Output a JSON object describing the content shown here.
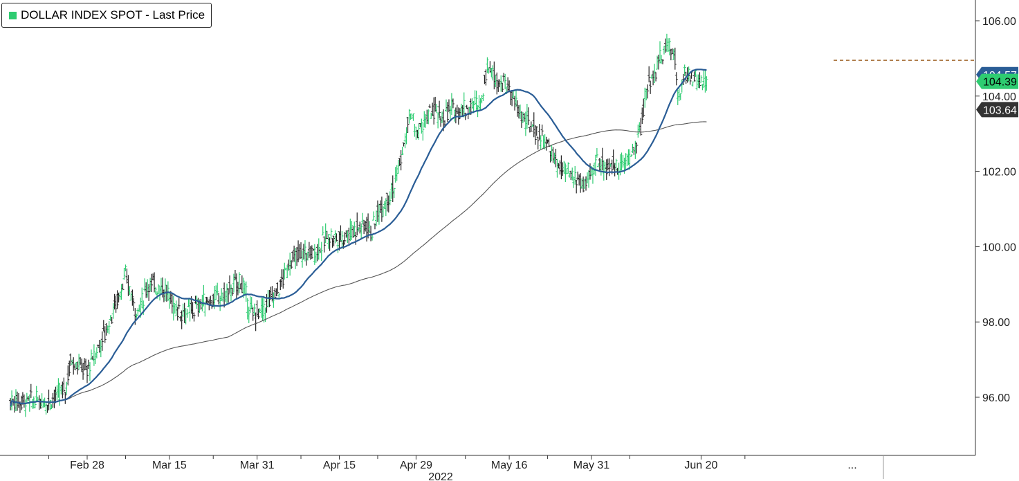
{
  "legend": {
    "label": "DOLLAR INDEX SPOT - Last Price"
  },
  "chart_data": {
    "type": "candlestick",
    "title": "",
    "legend_position": "top-left",
    "grid": false,
    "y_axis": {
      "position": "right",
      "ticks": [
        "106.00",
        "104.00",
        "102.00",
        "100.00",
        "98.00",
        "96.00"
      ],
      "ylim": [
        94.5,
        106.6
      ]
    },
    "x_axis": {
      "ticks": [
        "Feb 28",
        "Mar 15",
        "Mar 31",
        "Apr 15",
        "Apr 29",
        "May 16",
        "May 31",
        "...",
        "Jun 20"
      ],
      "year_label": "2022"
    },
    "colors": {
      "up": "#2ecc71",
      "down": "#222222",
      "ma_short": "#2a5d96",
      "ma_long": "#555555",
      "ref_line": "#a0662a",
      "last_price_box": "#2ecc71",
      "ma_label_box": "#333333",
      "ma_short_box": "#2a5d96"
    },
    "series_close_anchors": [
      [
        "Feb 21",
        95.9
      ],
      [
        "Feb 24",
        96.2
      ],
      [
        "Feb 25",
        97.0
      ],
      [
        "Feb 28",
        96.7
      ],
      [
        "Mar 2",
        97.3
      ],
      [
        "Mar 4",
        98.0
      ],
      [
        "Mar 7",
        99.2
      ],
      [
        "Mar 9",
        98.3
      ],
      [
        "Mar 10",
        98.5
      ],
      [
        "Mar 11",
        99.0
      ],
      [
        "Mar 14",
        98.9
      ],
      [
        "Mar 16",
        98.4
      ],
      [
        "Mar 18",
        98.2
      ],
      [
        "Mar 21",
        98.5
      ],
      [
        "Mar 23",
        98.6
      ],
      [
        "Mar 25",
        98.7
      ],
      [
        "Mar 28",
        99.1
      ],
      [
        "Mar 30",
        98.2
      ],
      [
        "Apr 1",
        98.3
      ],
      [
        "Apr 4",
        98.9
      ],
      [
        "Apr 6",
        99.6
      ],
      [
        "Apr 8",
        99.8
      ],
      [
        "Apr 11",
        99.9
      ],
      [
        "Apr 13",
        100.3
      ],
      [
        "Apr 15",
        100.2
      ],
      [
        "Apr 18",
        100.5
      ],
      [
        "Apr 20",
        100.6
      ],
      [
        "Apr 21",
        100.4
      ],
      [
        "Apr 22",
        100.9
      ],
      [
        "Apr 25",
        101.6
      ],
      [
        "Apr 27",
        102.8
      ],
      [
        "Apr 28",
        103.6
      ],
      [
        "Apr 29",
        103.0
      ],
      [
        "May 2",
        103.6
      ],
      [
        "May 4",
        103.4
      ],
      [
        "May 5",
        103.6
      ],
      [
        "May 9",
        103.7
      ],
      [
        "May 11",
        103.9
      ],
      [
        "May 12",
        104.9
      ],
      [
        "May 13",
        104.6
      ],
      [
        "May 16",
        104.2
      ],
      [
        "May 18",
        103.5
      ],
      [
        "May 20",
        103.2
      ],
      [
        "May 23",
        102.7
      ],
      [
        "May 25",
        102.1
      ],
      [
        "May 27",
        101.9
      ],
      [
        "May 30",
        101.6
      ],
      [
        "Jun 1",
        102.3
      ],
      [
        "Jun 3",
        102.1
      ],
      [
        "Jun 6",
        102.2
      ],
      [
        "Jun 8",
        102.6
      ],
      [
        "Jun 9",
        103.2
      ],
      [
        "Jun 10",
        104.2
      ],
      [
        "Jun 13",
        105.1
      ],
      [
        "Jun 14",
        105.4
      ],
      [
        "Jun 15",
        105.2
      ],
      [
        "Jun 16",
        103.8
      ],
      [
        "Jun 17",
        104.6
      ],
      [
        "Jun 20",
        104.4
      ],
      [
        "Jun 21",
        104.39
      ]
    ],
    "labels": {
      "last_price": "104.39",
      "ma_long_value": "103.64",
      "ma_short_value": "104.57"
    },
    "reference_level": 104.95
  }
}
